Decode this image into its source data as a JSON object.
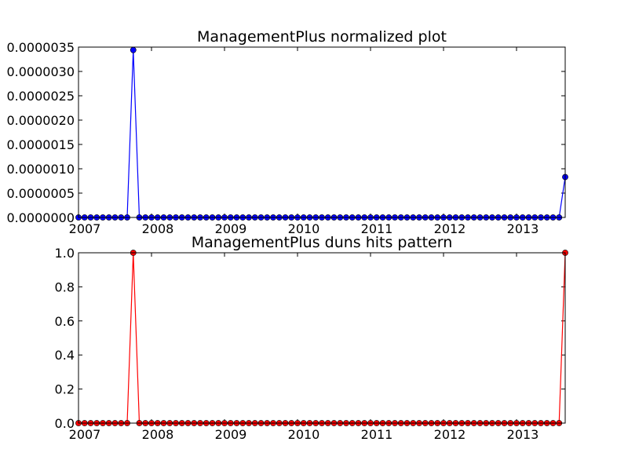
{
  "figure": {
    "background": "#ffffff"
  },
  "chart_data": [
    {
      "type": "line",
      "title": "ManagementPlus normalized plot",
      "xlabel": "",
      "ylabel": "",
      "color": "#0000ff",
      "marker": "circle",
      "grid": false,
      "legend": "none",
      "xlim": [
        "2007-01",
        "2013-09"
      ],
      "ylim": [
        0,
        3.5e-06
      ],
      "x_tick_labels": [
        "2007",
        "2008",
        "2009",
        "2010",
        "2011",
        "2012",
        "2013"
      ],
      "y_tick_labels": [
        "0.0000000",
        "0.0000005",
        "0.0000010",
        "0.0000015",
        "0.0000020",
        "0.0000025",
        "0.0000030",
        "0.0000035"
      ],
      "x": [
        "2007-01",
        "2007-02",
        "2007-03",
        "2007-04",
        "2007-05",
        "2007-06",
        "2007-07",
        "2007-08",
        "2007-09",
        "2007-10",
        "2007-11",
        "2007-12",
        "2008-01",
        "2008-02",
        "2008-03",
        "2008-04",
        "2008-05",
        "2008-06",
        "2008-07",
        "2008-08",
        "2008-09",
        "2008-10",
        "2008-11",
        "2008-12",
        "2009-01",
        "2009-02",
        "2009-03",
        "2009-04",
        "2009-05",
        "2009-06",
        "2009-07",
        "2009-08",
        "2009-09",
        "2009-10",
        "2009-11",
        "2009-12",
        "2010-01",
        "2010-02",
        "2010-03",
        "2010-04",
        "2010-05",
        "2010-06",
        "2010-07",
        "2010-08",
        "2010-09",
        "2010-10",
        "2010-11",
        "2010-12",
        "2011-01",
        "2011-02",
        "2011-03",
        "2011-04",
        "2011-05",
        "2011-06",
        "2011-07",
        "2011-08",
        "2011-09",
        "2011-10",
        "2011-11",
        "2011-12",
        "2012-01",
        "2012-02",
        "2012-03",
        "2012-04",
        "2012-05",
        "2012-06",
        "2012-07",
        "2012-08",
        "2012-09",
        "2012-10",
        "2012-11",
        "2012-12",
        "2013-01",
        "2013-02",
        "2013-03",
        "2013-04",
        "2013-05",
        "2013-06",
        "2013-07",
        "2013-08",
        "2013-09"
      ],
      "values": [
        0,
        0,
        0,
        0,
        0,
        0,
        0,
        0,
        0,
        3.44e-06,
        0,
        0,
        0,
        0,
        0,
        0,
        0,
        0,
        0,
        0,
        0,
        0,
        0,
        0,
        0,
        0,
        0,
        0,
        0,
        0,
        0,
        0,
        0,
        0,
        0,
        0,
        0,
        0,
        0,
        0,
        0,
        0,
        0,
        0,
        0,
        0,
        0,
        0,
        0,
        0,
        0,
        0,
        0,
        0,
        0,
        0,
        0,
        0,
        0,
        0,
        0,
        0,
        0,
        0,
        0,
        0,
        0,
        0,
        0,
        0,
        0,
        0,
        0,
        0,
        0,
        0,
        0,
        0,
        0,
        0,
        8.3e-07
      ]
    },
    {
      "type": "line",
      "title": "ManagementPlus duns hits pattern",
      "xlabel": "",
      "ylabel": "",
      "color": "#ff0000",
      "marker": "circle",
      "grid": false,
      "legend": "none",
      "xlim": [
        "2007-01",
        "2013-09"
      ],
      "ylim": [
        0,
        1
      ],
      "x_tick_labels": [
        "2007",
        "2008",
        "2009",
        "2010",
        "2011",
        "2012",
        "2013"
      ],
      "y_tick_labels": [
        "0.0",
        "0.2",
        "0.4",
        "0.6",
        "0.8",
        "1.0"
      ],
      "x": [
        "2007-01",
        "2007-02",
        "2007-03",
        "2007-04",
        "2007-05",
        "2007-06",
        "2007-07",
        "2007-08",
        "2007-09",
        "2007-10",
        "2007-11",
        "2007-12",
        "2008-01",
        "2008-02",
        "2008-03",
        "2008-04",
        "2008-05",
        "2008-06",
        "2008-07",
        "2008-08",
        "2008-09",
        "2008-10",
        "2008-11",
        "2008-12",
        "2009-01",
        "2009-02",
        "2009-03",
        "2009-04",
        "2009-05",
        "2009-06",
        "2009-07",
        "2009-08",
        "2009-09",
        "2009-10",
        "2009-11",
        "2009-12",
        "2010-01",
        "2010-02",
        "2010-03",
        "2010-04",
        "2010-05",
        "2010-06",
        "2010-07",
        "2010-08",
        "2010-09",
        "2010-10",
        "2010-11",
        "2010-12",
        "2011-01",
        "2011-02",
        "2011-03",
        "2011-04",
        "2011-05",
        "2011-06",
        "2011-07",
        "2011-08",
        "2011-09",
        "2011-10",
        "2011-11",
        "2011-12",
        "2012-01",
        "2012-02",
        "2012-03",
        "2012-04",
        "2012-05",
        "2012-06",
        "2012-07",
        "2012-08",
        "2012-09",
        "2012-10",
        "2012-11",
        "2012-12",
        "2013-01",
        "2013-02",
        "2013-03",
        "2013-04",
        "2013-05",
        "2013-06",
        "2013-07",
        "2013-08",
        "2013-09"
      ],
      "values": [
        0,
        0,
        0,
        0,
        0,
        0,
        0,
        0,
        0,
        1,
        0,
        0,
        0,
        0,
        0,
        0,
        0,
        0,
        0,
        0,
        0,
        0,
        0,
        0,
        0,
        0,
        0,
        0,
        0,
        0,
        0,
        0,
        0,
        0,
        0,
        0,
        0,
        0,
        0,
        0,
        0,
        0,
        0,
        0,
        0,
        0,
        0,
        0,
        0,
        0,
        0,
        0,
        0,
        0,
        0,
        0,
        0,
        0,
        0,
        0,
        0,
        0,
        0,
        0,
        0,
        0,
        0,
        0,
        0,
        0,
        0,
        0,
        0,
        0,
        0,
        0,
        0,
        0,
        0,
        0,
        1
      ]
    }
  ]
}
